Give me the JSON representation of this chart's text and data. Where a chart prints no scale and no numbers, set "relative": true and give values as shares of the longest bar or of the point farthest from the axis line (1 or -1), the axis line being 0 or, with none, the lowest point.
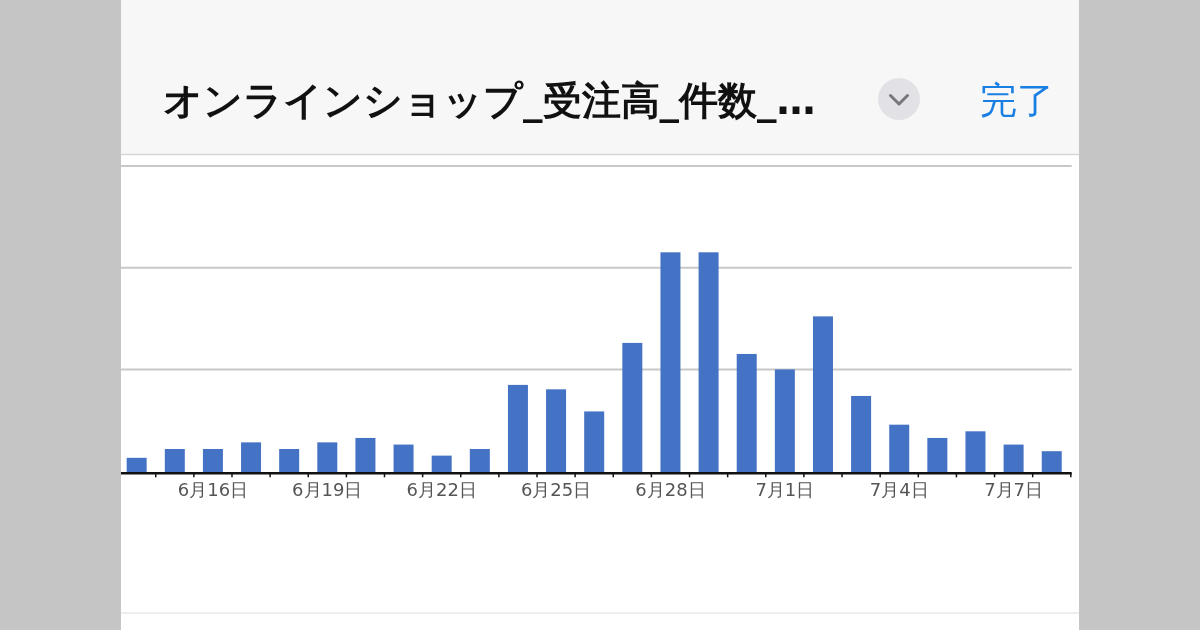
{
  "chart_data": {
    "type": "bar",
    "title": "オンラインショップ_受注高_件数_…",
    "annotations": [
      "完了"
    ],
    "categories": [
      null,
      null,
      "6月16日",
      null,
      null,
      "6月19日",
      null,
      null,
      "6月22日",
      null,
      null,
      "6月25日",
      null,
      null,
      "6月28日",
      null,
      null,
      "7月1日",
      null,
      null,
      "7月4日",
      null,
      null,
      "7月7日",
      null
    ],
    "values": [
      0.07,
      0.11,
      0.11,
      0.14,
      0.11,
      0.14,
      0.16,
      0.13,
      0.08,
      0.11,
      0.4,
      0.38,
      0.28,
      0.59,
      1,
      1,
      0.54,
      0.47,
      0.71,
      0.35,
      0.22,
      0.16,
      0.19,
      0.13,
      0.1
    ],
    "color": "#4472c4",
    "relative": true,
    "ref_lines": [
      {
        "axis": "y",
        "value": 0.47,
        "color": "#c8c8c8"
      },
      {
        "axis": "y",
        "value": 0.93,
        "color": "#c8c8c8"
      },
      {
        "axis": "y",
        "value": 1.39,
        "color": "#c8c8c8"
      }
    ],
    "tick_labels": "x"
  }
}
